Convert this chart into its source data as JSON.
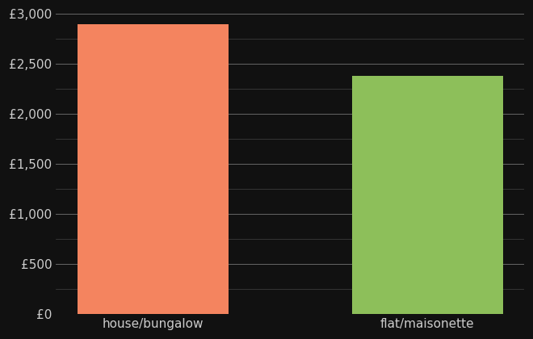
{
  "categories": [
    "house/bungalow",
    "flat/maisonette"
  ],
  "values": [
    2900,
    2380
  ],
  "bar_colors": [
    "#F4845F",
    "#8DBF5A"
  ],
  "background_color": "#111111",
  "text_color": "#cccccc",
  "grid_color_major": "#666666",
  "grid_color_minor": "#444444",
  "ylim": [
    0,
    3000
  ],
  "yticks_major": [
    0,
    500,
    1000,
    1500,
    2000,
    2500,
    3000
  ],
  "yticks_minor": [
    250,
    750,
    1250,
    1750,
    2250,
    2750
  ],
  "figsize": [
    6.6,
    4.2
  ],
  "dpi": 100,
  "tick_label_fontsize": 11,
  "xlabel_fontsize": 11
}
